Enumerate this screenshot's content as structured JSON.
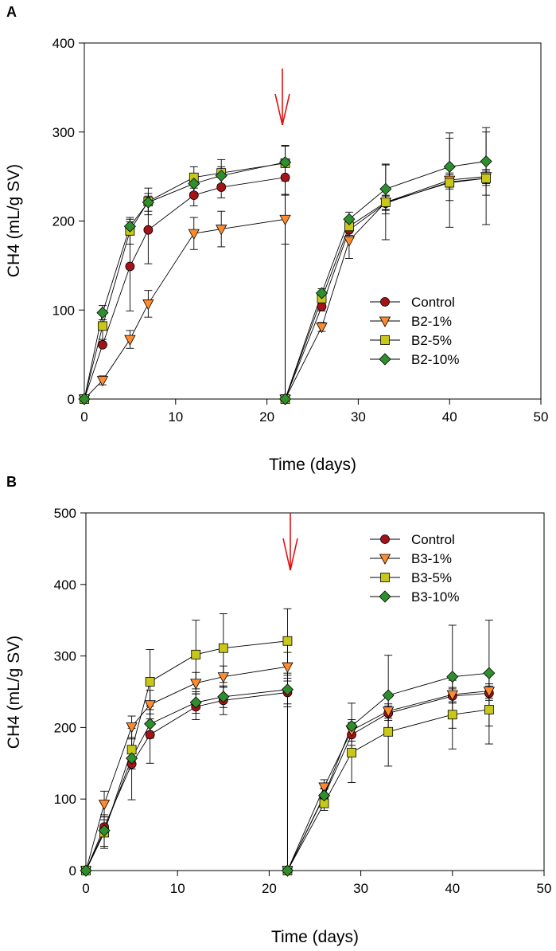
{
  "chart_data": [
    {
      "panel": "A",
      "type": "line",
      "xlabel": "Time (days)",
      "ylabel": "CH4 (mL/g SV)",
      "xlim": [
        0,
        50
      ],
      "ylim": [
        0,
        400
      ],
      "xticks": [
        0,
        10,
        20,
        30,
        40,
        50
      ],
      "yticks": [
        0,
        100,
        200,
        300,
        400
      ],
      "grid": false,
      "legend_position": "lower-right",
      "annotation": "red arrow at day 22 (second feeding)",
      "x": [
        0,
        2,
        5,
        7,
        12,
        15,
        22,
        22,
        26,
        29,
        33,
        40,
        44
      ],
      "series": [
        {
          "name": "Control",
          "marker": "circle",
          "color": "#a41318",
          "values": [
            0,
            61,
            149,
            190,
            229,
            238,
            249,
            0,
            104,
            190,
            220,
            244,
            248
          ],
          "errors": [
            0,
            0,
            50,
            38,
            12,
            12,
            20,
            0,
            5,
            10,
            8,
            8,
            8
          ]
        },
        {
          "name": "B2-1%",
          "marker": "triangle-down",
          "color": "#ff8b2e",
          "values": [
            0,
            21,
            67,
            107,
            186,
            191,
            202,
            0,
            81,
            178,
            221,
            246,
            250
          ],
          "errors": [
            0,
            5,
            10,
            15,
            18,
            20,
            28,
            0,
            5,
            20,
            8,
            8,
            8
          ]
        },
        {
          "name": "B2-5%",
          "marker": "square",
          "color": "#c8c818",
          "values": [
            0,
            82,
            189,
            222,
            249,
            254,
            265,
            0,
            113,
            194,
            221,
            243,
            248
          ],
          "errors": [
            0,
            15,
            15,
            15,
            12,
            15,
            20,
            0,
            5,
            10,
            42,
            50,
            52
          ]
        },
        {
          "name": "B2-10%",
          "marker": "diamond",
          "color": "#2e8f2e",
          "values": [
            0,
            97,
            194,
            221,
            242,
            251,
            266,
            0,
            119,
            202,
            236,
            261,
            267
          ],
          "errors": [
            0,
            8,
            8,
            10,
            10,
            10,
            18,
            0,
            5,
            8,
            28,
            38,
            38
          ]
        }
      ]
    },
    {
      "panel": "B",
      "type": "line",
      "xlabel": "Time (days)",
      "ylabel": "CH4 (mL/g SV)",
      "xlim": [
        0,
        50
      ],
      "ylim": [
        0,
        500
      ],
      "xticks": [
        0,
        10,
        20,
        30,
        40,
        50
      ],
      "yticks": [
        0,
        100,
        200,
        300,
        400,
        500
      ],
      "grid": false,
      "legend_position": "top-right",
      "annotation": "red arrow at day 22 (second feeding)",
      "x": [
        0,
        2,
        5,
        7,
        12,
        15,
        22,
        22,
        26,
        29,
        33,
        40,
        44
      ],
      "series": [
        {
          "name": "Control",
          "marker": "circle",
          "color": "#a41318",
          "values": [
            0,
            61,
            149,
            190,
            229,
            238,
            249,
            0,
            104,
            190,
            220,
            244,
            248
          ],
          "errors": [
            0,
            10,
            50,
            40,
            18,
            20,
            20,
            0,
            10,
            15,
            10,
            10,
            10
          ]
        },
        {
          "name": "B3-1%",
          "marker": "triangle-down",
          "color": "#ff8b2e",
          "values": [
            0,
            93,
            201,
            232,
            262,
            271,
            285,
            0,
            117,
            196,
            223,
            246,
            251
          ],
          "errors": [
            0,
            18,
            15,
            20,
            15,
            15,
            20,
            0,
            10,
            15,
            10,
            10,
            10
          ]
        },
        {
          "name": "B3-5%",
          "marker": "square",
          "color": "#c8c818",
          "values": [
            0,
            53,
            169,
            264,
            302,
            311,
            321,
            0,
            94,
            165,
            194,
            218,
            225
          ],
          "errors": [
            0,
            22,
            15,
            45,
            48,
            48,
            45,
            0,
            10,
            42,
            48,
            48,
            48
          ]
        },
        {
          "name": "B3-10%",
          "marker": "diamond",
          "color": "#2e8f2e",
          "values": [
            0,
            56,
            157,
            205,
            235,
            243,
            253,
            0,
            105,
            202,
            245,
            271,
            276
          ],
          "errors": [
            0,
            22,
            15,
            20,
            15,
            15,
            20,
            0,
            10,
            32,
            56,
            72,
            74
          ]
        }
      ]
    }
  ]
}
